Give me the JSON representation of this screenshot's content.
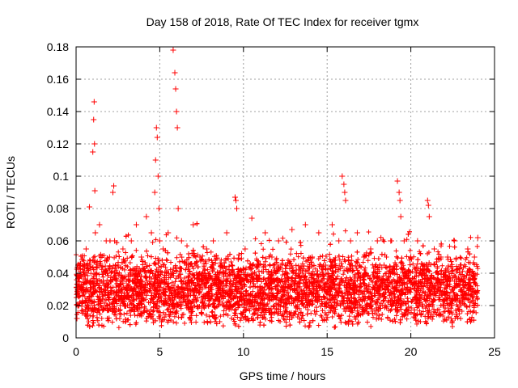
{
  "chart_data": {
    "type": "scatter",
    "title": "Day 158 of 2018, Rate Of TEC Index for receiver tgmx",
    "xlabel": "GPS time / hours",
    "ylabel": "ROTI / TECUs",
    "xlim": [
      0,
      25
    ],
    "ylim": [
      0,
      0.18
    ],
    "xticks": [
      0,
      5,
      10,
      15,
      20,
      25
    ],
    "xtick_labels": [
      "0",
      "5",
      "10",
      "15",
      "20",
      "25"
    ],
    "yticks": [
      0,
      0.02,
      0.04,
      0.06,
      0.08,
      0.1,
      0.12,
      0.14,
      0.16,
      0.18
    ],
    "ytick_labels": [
      "0",
      "0.02",
      "0.04",
      "0.06",
      "0.08",
      "0.1",
      "0.12",
      "0.14",
      "0.16",
      "0.18"
    ],
    "grid": true,
    "marker": "+",
    "color": "#ff0000",
    "series": [
      {
        "name": "ROTI",
        "x": [
          0.05,
          0.2,
          0.4,
          0.6,
          0.8,
          1.0,
          1.05,
          1.08,
          1.1,
          1.12,
          1.15,
          1.2,
          1.4,
          1.6,
          1.8,
          2.0,
          2.2,
          2.25,
          2.3,
          2.5,
          2.8,
          3.0,
          3.3,
          3.6,
          3.9,
          4.2,
          4.5,
          4.7,
          4.75,
          4.8,
          4.85,
          4.9,
          4.95,
          5.0,
          5.2,
          5.5,
          5.8,
          5.9,
          5.95,
          6.0,
          6.05,
          6.1,
          6.3,
          6.6,
          7.0,
          7.4,
          7.8,
          8.2,
          8.6,
          9.0,
          9.3,
          9.5,
          9.55,
          9.6,
          9.8,
          10.1,
          10.5,
          10.9,
          11.3,
          11.7,
          12.1,
          12.5,
          12.9,
          13.3,
          13.7,
          14.1,
          14.5,
          14.9,
          15.3,
          15.7,
          15.9,
          16.0,
          16.05,
          16.1,
          16.4,
          16.8,
          17.2,
          17.6,
          18.0,
          18.4,
          18.8,
          19.2,
          19.3,
          19.35,
          19.4,
          19.6,
          20.0,
          20.4,
          20.8,
          21.0,
          21.05,
          21.1,
          21.4,
          21.8,
          22.2,
          22.6,
          23.0,
          23.4,
          23.8,
          24.0
        ],
        "y": [
          0.012,
          0.045,
          0.03,
          0.055,
          0.081,
          0.115,
          0.135,
          0.146,
          0.12,
          0.091,
          0.065,
          0.04,
          0.07,
          0.034,
          0.06,
          0.05,
          0.09,
          0.094,
          0.06,
          0.045,
          0.055,
          0.035,
          0.06,
          0.07,
          0.05,
          0.075,
          0.065,
          0.09,
          0.11,
          0.13,
          0.124,
          0.1,
          0.08,
          0.06,
          0.055,
          0.065,
          0.178,
          0.164,
          0.154,
          0.14,
          0.13,
          0.08,
          0.06,
          0.045,
          0.07,
          0.05,
          0.055,
          0.06,
          0.04,
          0.065,
          0.045,
          0.087,
          0.085,
          0.08,
          0.035,
          0.055,
          0.074,
          0.045,
          0.065,
          0.05,
          0.06,
          0.045,
          0.067,
          0.04,
          0.07,
          0.05,
          0.065,
          0.045,
          0.07,
          0.06,
          0.1,
          0.095,
          0.09,
          0.085,
          0.06,
          0.065,
          0.05,
          0.055,
          0.06,
          0.045,
          0.06,
          0.097,
          0.09,
          0.085,
          0.075,
          0.06,
          0.05,
          0.06,
          0.045,
          0.085,
          0.082,
          0.075,
          0.055,
          0.05,
          0.05,
          0.06,
          0.045,
          0.055,
          0.05,
          0.062
        ]
      }
    ]
  }
}
